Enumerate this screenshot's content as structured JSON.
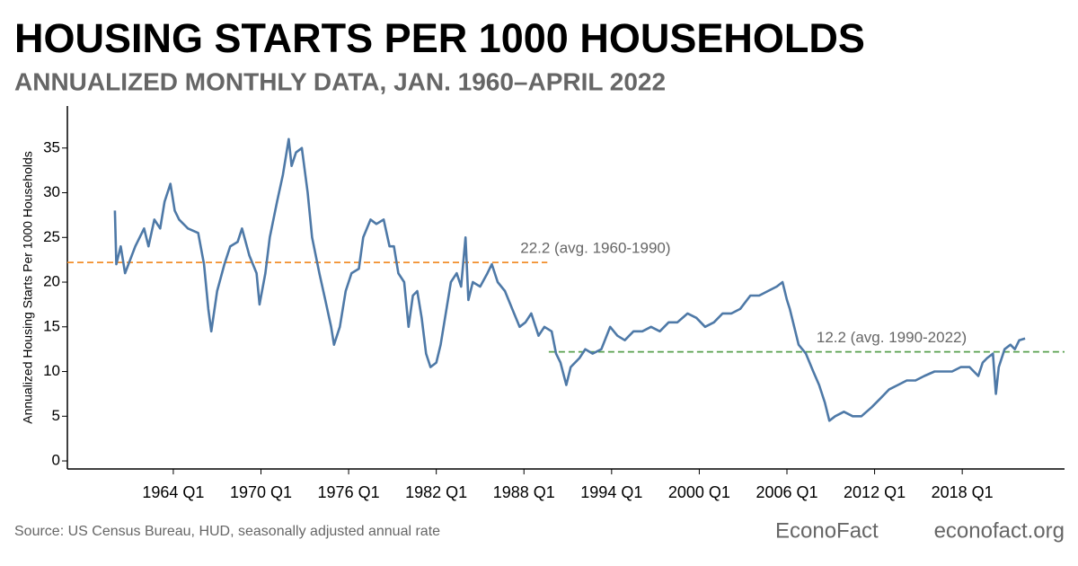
{
  "chart_data": {
    "type": "line",
    "title": "HOUSING STARTS PER 1000 HOUSEHOLDS",
    "subtitle": "ANNUALIZED MONTHLY DATA, JAN. 1960–APRIL 2022",
    "y_label": "Annualized Housing Starts Per 1000 Households",
    "source": "Source: US Census Bureau, HUD, seasonally adjusted annual rate",
    "brand": "EconoFact",
    "website": "econofact.org",
    "color": "#4e79a7",
    "x": [
      1960.0,
      1960.1,
      1960.4,
      1960.7,
      1961.4,
      1962.0,
      1962.3,
      1962.7,
      1963.1,
      1963.4,
      1963.8,
      1964.1,
      1964.4,
      1965.0,
      1965.7,
      1966.1,
      1966.4,
      1966.6,
      1967.0,
      1967.5,
      1967.9,
      1968.4,
      1968.7,
      1969.2,
      1969.7,
      1969.9,
      1970.3,
      1970.6,
      1971.1,
      1971.5,
      1971.9,
      1972.1,
      1972.4,
      1972.8,
      1973.2,
      1973.5,
      1974.0,
      1974.4,
      1974.8,
      1975.0,
      1975.4,
      1975.8,
      1976.2,
      1976.7,
      1977.0,
      1977.5,
      1977.9,
      1978.4,
      1978.8,
      1979.1,
      1979.4,
      1979.8,
      1980.1,
      1980.4,
      1980.7,
      1981.0,
      1981.3,
      1981.6,
      1982.0,
      1982.3,
      1982.6,
      1983.0,
      1983.4,
      1983.7,
      1984.0,
      1984.2,
      1984.5,
      1985.0,
      1985.5,
      1985.8,
      1986.2,
      1986.7,
      1987.2,
      1987.7,
      1988.1,
      1988.5,
      1989.0,
      1989.4,
      1989.9,
      1990.2,
      1990.5,
      1990.9,
      1991.2,
      1991.8,
      1992.2,
      1992.7,
      1993.3,
      1993.9,
      1994.4,
      1994.9,
      1995.5,
      1996.1,
      1996.7,
      1997.3,
      1997.9,
      1998.5,
      1999.2,
      1999.8,
      2000.4,
      2001.0,
      2001.6,
      2002.2,
      2002.8,
      2003.5,
      2004.1,
      2004.7,
      2005.3,
      2005.7,
      2006.0,
      2006.2,
      2006.5,
      2006.8,
      2007.3,
      2007.8,
      2008.2,
      2008.6,
      2008.9,
      2009.3,
      2009.9,
      2010.5,
      2011.1,
      2011.8,
      2012.4,
      2013.0,
      2013.6,
      2014.2,
      2014.8,
      2015.4,
      2016.1,
      2016.7,
      2017.3,
      2017.9,
      2018.5,
      2019.1,
      2019.4,
      2019.7,
      2020.1,
      2020.3,
      2020.5,
      2020.9,
      2021.3,
      2021.6,
      2021.9,
      2022.3
    ],
    "values": [
      28,
      22,
      24,
      21,
      24,
      26,
      24,
      27,
      26,
      29,
      31,
      28,
      27,
      26,
      25.5,
      22,
      17,
      14.5,
      19,
      22,
      24,
      24.5,
      26,
      23,
      21,
      17.5,
      21,
      25,
      29,
      32,
      36,
      33,
      34.5,
      35,
      30,
      25,
      21,
      18,
      15,
      13,
      15,
      19,
      21,
      21.5,
      25,
      27,
      26.5,
      27,
      24,
      24,
      21,
      20,
      15,
      18.5,
      19,
      16,
      12,
      10.5,
      11,
      13,
      16,
      20,
      21,
      19.5,
      25,
      18,
      20,
      19.5,
      21,
      22,
      20,
      19,
      17,
      15,
      15.5,
      16.5,
      14,
      15,
      14.5,
      12,
      11,
      8.5,
      10.5,
      11.5,
      12.5,
      12,
      12.5,
      15,
      14,
      13.5,
      14.5,
      14.5,
      15,
      14.5,
      15.5,
      15.5,
      16.5,
      16,
      15,
      15.5,
      16.5,
      16.5,
      17,
      18.5,
      18.5,
      19,
      19.5,
      20,
      18,
      17,
      15,
      13,
      12,
      10,
      8.5,
      6.5,
      4.5,
      5,
      5.5,
      5,
      5,
      6,
      7,
      8,
      8.5,
      9,
      9,
      9.5,
      10,
      10,
      10,
      10.5,
      10.5,
      9.5,
      11,
      11.5,
      12,
      7.5,
      10.5,
      12.5,
      13,
      12.5,
      13.5,
      13.7
    ],
    "reference_lines": [
      {
        "value": 22.2,
        "label": "22.2 (avg. 1960-1990)",
        "color": "#f28e2b",
        "x": [
          1956.75,
          1989.6
        ]
      },
      {
        "value": 12.2,
        "label": "12.2 (avg. 1990-2022)",
        "color": "#59a14f",
        "x": [
          1989.7,
          2025
        ]
      }
    ],
    "xlim": [
      1956.75,
      2025
    ],
    "ylim": [
      -0.9,
      39.7
    ],
    "xticks": [
      {
        "value": 1964,
        "label": "1964 Q1"
      },
      {
        "value": 1970,
        "label": "1970 Q1"
      },
      {
        "value": 1976,
        "label": "1976 Q1"
      },
      {
        "value": 1982,
        "label": "1982 Q1"
      },
      {
        "value": 1988,
        "label": "1988 Q1"
      },
      {
        "value": 1994,
        "label": "1994 Q1"
      },
      {
        "value": 2000,
        "label": "2000 Q1"
      },
      {
        "value": 2006,
        "label": "2006 Q1"
      },
      {
        "value": 2012,
        "label": "2012 Q1"
      },
      {
        "value": 2018,
        "label": "2018 Q1"
      }
    ],
    "yticks": [
      0,
      5,
      10,
      15,
      20,
      25,
      30,
      35
    ]
  }
}
